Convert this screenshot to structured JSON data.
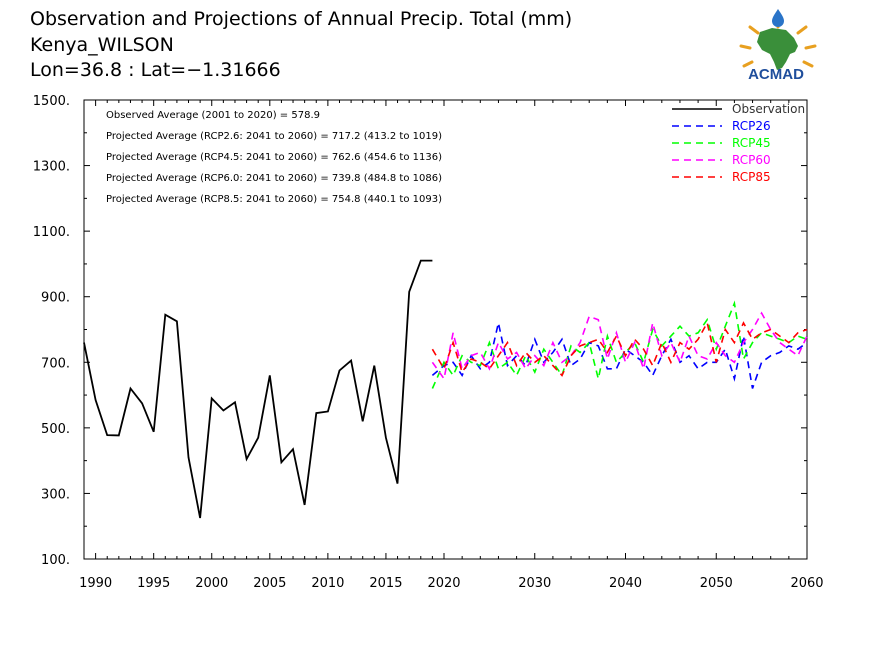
{
  "header": {
    "title": "Observation and Projections of Annual Precip. Total (mm)",
    "station": "Kenya_WILSON",
    "coords": "Lon=36.8 : Lat=−1.31666"
  },
  "logo": {
    "text": "ACMAD",
    "colors": {
      "text": "#1f4e9c",
      "africa": "#3a8f3a",
      "sun": "#e8a020",
      "drop": "#2a74c8"
    }
  },
  "chart_data": {
    "type": "line",
    "xlim": [
      1989,
      2060
    ],
    "ylim": [
      100,
      1500
    ],
    "x_ticks": [
      1990,
      1995,
      2000,
      2005,
      2010,
      2015,
      2020,
      2030,
      2040,
      2050,
      2060
    ],
    "x_tick_labels": [
      "1990",
      "1995",
      "2000",
      "2005",
      "2010",
      "2015",
      "2020",
      "2030",
      "2040",
      "2050",
      "2060"
    ],
    "y_ticks": [
      100,
      300,
      500,
      700,
      900,
      1100,
      1300,
      1500
    ],
    "y_tick_labels": [
      "100.",
      "300.",
      "500.",
      "700.",
      "900.",
      "1100.",
      "1300.",
      "1500."
    ],
    "legend_position": "top-right",
    "annotations": [
      "Observed Average (2001 to 2020) = 578.9",
      "Projected Average (RCP2.6: 2041 to 2060) = 717.2 (413.2 to 1019)",
      "Projected Average (RCP4.5: 2041 to 2060) = 762.6 (454.6 to 1136)",
      "Projected Average (RCP6.0: 2041 to 2060) = 739.8 (484.8 to 1086)",
      "Projected Average (RCP8.5: 2041 to 2060) = 754.8 (440.1 to 1093)"
    ],
    "series": [
      {
        "name": "Observation",
        "color": "#000000",
        "dashed": false,
        "x": [
          1989,
          1990,
          1991,
          1992,
          1993,
          1994,
          1995,
          1996,
          1997,
          1998,
          1999,
          2000,
          2001,
          2002,
          2003,
          2004,
          2005,
          2006,
          2007,
          2008,
          2009,
          2010,
          2011,
          2012,
          2013,
          2014,
          2015,
          2016,
          2017,
          2018,
          2019
        ],
        "values": [
          760,
          585,
          478,
          477,
          620,
          575,
          488,
          845,
          825,
          410,
          225,
          590,
          553,
          578,
          405,
          470,
          660,
          395,
          435,
          265,
          545,
          550,
          675,
          705,
          520,
          690,
          470,
          330,
          915,
          1010,
          1010
        ]
      },
      {
        "name": "RCP26",
        "color": "#0000ff",
        "dashed": true,
        "x": [
          2019,
          2020,
          2021,
          2022,
          2023,
          2024,
          2025,
          2026,
          2027,
          2028,
          2029,
          2030,
          2031,
          2032,
          2033,
          2034,
          2035,
          2036,
          2037,
          2038,
          2039,
          2040,
          2041,
          2042,
          2043,
          2044,
          2045,
          2046,
          2047,
          2048,
          2049,
          2050,
          2051,
          2052,
          2053,
          2054,
          2055,
          2056,
          2057,
          2058,
          2059,
          2060
        ],
        "values": [
          660,
          690,
          700,
          660,
          720,
          680,
          700,
          820,
          690,
          720,
          690,
          770,
          700,
          730,
          770,
          690,
          710,
          760,
          750,
          680,
          680,
          740,
          720,
          700,
          660,
          720,
          770,
          700,
          720,
          680,
          700,
          700,
          740,
          650,
          780,
          620,
          700,
          720,
          730,
          750,
          740,
          760
        ]
      },
      {
        "name": "RCP45",
        "color": "#00ff00",
        "dashed": true,
        "x": [
          2019,
          2020,
          2021,
          2022,
          2023,
          2024,
          2025,
          2026,
          2027,
          2028,
          2029,
          2030,
          2031,
          2032,
          2033,
          2034,
          2035,
          2036,
          2037,
          2038,
          2039,
          2040,
          2041,
          2042,
          2043,
          2044,
          2045,
          2046,
          2047,
          2048,
          2049,
          2050,
          2051,
          2052,
          2053,
          2054,
          2055,
          2056,
          2057,
          2058,
          2059,
          2060
        ],
        "values": [
          620,
          700,
          660,
          720,
          700,
          690,
          760,
          680,
          700,
          660,
          720,
          670,
          740,
          700,
          660,
          750,
          730,
          760,
          650,
          780,
          700,
          730,
          760,
          700,
          800,
          750,
          780,
          810,
          780,
          790,
          830,
          740,
          810,
          880,
          710,
          760,
          790,
          780,
          770,
          760,
          780,
          770
        ]
      },
      {
        "name": "RCP60",
        "color": "#ff00ff",
        "dashed": true,
        "x": [
          2019,
          2020,
          2021,
          2022,
          2023,
          2024,
          2025,
          2026,
          2027,
          2028,
          2029,
          2030,
          2031,
          2032,
          2033,
          2034,
          2035,
          2036,
          2037,
          2038,
          2039,
          2040,
          2041,
          2042,
          2043,
          2044,
          2045,
          2046,
          2047,
          2048,
          2049,
          2050,
          2051,
          2052,
          2053,
          2054,
          2055,
          2056,
          2057,
          2058,
          2059,
          2060
        ],
        "values": [
          700,
          650,
          790,
          680,
          720,
          730,
          680,
          760,
          710,
          730,
          680,
          720,
          690,
          760,
          700,
          720,
          760,
          840,
          830,
          710,
          790,
          700,
          760,
          680,
          820,
          720,
          760,
          700,
          780,
          720,
          710,
          760,
          720,
          700,
          760,
          800,
          850,
          800,
          760,
          740,
          720,
          780
        ]
      },
      {
        "name": "RCP85",
        "color": "#ff0000",
        "dashed": true,
        "x": [
          2019,
          2020,
          2021,
          2022,
          2023,
          2024,
          2025,
          2026,
          2027,
          2028,
          2029,
          2030,
          2031,
          2032,
          2033,
          2034,
          2035,
          2036,
          2037,
          2038,
          2039,
          2040,
          2041,
          2042,
          2043,
          2044,
          2045,
          2046,
          2047,
          2048,
          2049,
          2050,
          2051,
          2052,
          2053,
          2054,
          2055,
          2056,
          2057,
          2058,
          2059,
          2060
        ],
        "values": [
          740,
          680,
          760,
          670,
          710,
          700,
          680,
          720,
          760,
          690,
          730,
          700,
          720,
          690,
          660,
          720,
          750,
          760,
          770,
          730,
          780,
          720,
          770,
          740,
          690,
          760,
          700,
          760,
          740,
          770,
          820,
          700,
          800,
          760,
          820,
          770,
          790,
          800,
          780,
          760,
          790,
          800
        ]
      }
    ]
  }
}
